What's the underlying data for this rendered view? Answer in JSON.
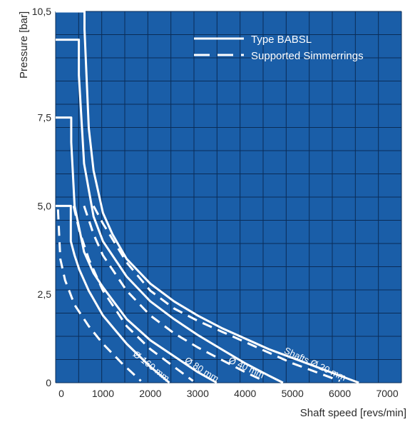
{
  "chart_data": {
    "type": "line",
    "xlabel": "Shaft speed [revs/min]",
    "ylabel": "Pressure [bar]",
    "xlim": [
      0,
      7300
    ],
    "ylim": [
      0,
      10.5
    ],
    "xticks": [
      0,
      1000,
      2000,
      3000,
      4000,
      5000,
      6000,
      7000
    ],
    "xtick_labels": [
      "0",
      "1000",
      "2000",
      "3000",
      "4000",
      "5000",
      "6000",
      "7000"
    ],
    "yticks": [
      0,
      2.5,
      5.0,
      7.5,
      10.5
    ],
    "ytick_labels": [
      "0",
      "2,5",
      "5,0",
      "7,5",
      "10,5"
    ],
    "grid": true,
    "background_color": "#1a5ea8",
    "line_color": "#ffffff",
    "legend_position": "top-right",
    "legend": [
      {
        "label": "Type BABSL",
        "style": "solid"
      },
      {
        "label": "Supported Simmerrings",
        "style": "dashed"
      }
    ],
    "series": [
      {
        "label": "Shafts Ø 20 mm",
        "style": "solid",
        "x": [
          0,
          610,
          610,
          700,
          800,
          1000,
          1200,
          1500,
          2000,
          2500,
          3000,
          3500,
          4000,
          4500,
          5000,
          5500,
          6000,
          6400
        ],
        "y": [
          10.5,
          10.5,
          10.0,
          7.2,
          6.0,
          4.8,
          4.2,
          3.5,
          2.8,
          2.3,
          1.9,
          1.55,
          1.25,
          0.95,
          0.7,
          0.45,
          0.2,
          0
        ]
      },
      {
        "label": "Ø 40 mm",
        "style": "solid",
        "x": [
          0,
          490,
          490,
          600,
          800,
          1000,
          1500,
          2000,
          2500,
          3000,
          3500,
          4000,
          4500,
          4800
        ],
        "y": [
          9.7,
          9.7,
          8.7,
          6.2,
          4.7,
          4.0,
          3.0,
          2.3,
          1.8,
          1.35,
          0.95,
          0.55,
          0.2,
          0
        ]
      },
      {
        "label": "Ø 80 mm",
        "style": "solid",
        "x": [
          0,
          330,
          330,
          400,
          600,
          800,
          1000,
          1500,
          2000,
          2500,
          3000,
          3400
        ],
        "y": [
          7.5,
          7.5,
          6.8,
          5.0,
          3.7,
          3.1,
          2.7,
          1.8,
          1.2,
          0.75,
          0.3,
          0
        ]
      },
      {
        "label": "Ø 160 mm",
        "style": "solid",
        "x": [
          0,
          320,
          320,
          400,
          500,
          700,
          1000,
          1500,
          2000,
          2400
        ],
        "y": [
          5.0,
          5.0,
          4.0,
          3.6,
          3.2,
          2.6,
          1.9,
          1.1,
          0.45,
          0
        ]
      },
      {
        "label": "Shafts Ø 20 mm",
        "style": "dashed",
        "x": [
          800,
          1000,
          1500,
          2000,
          2500,
          3000,
          3500,
          4000,
          4500,
          5000,
          5500,
          6000
        ],
        "y": [
          5.0,
          4.5,
          3.4,
          2.6,
          2.1,
          1.75,
          1.45,
          1.15,
          0.85,
          0.55,
          0.3,
          0.05
        ]
      },
      {
        "label": "Ø 40 mm",
        "style": "dashed",
        "x": [
          600,
          800,
          1000,
          1500,
          2000,
          2500,
          3000,
          3500,
          4000,
          4400
        ],
        "y": [
          5.0,
          4.2,
          3.6,
          2.6,
          1.9,
          1.4,
          1.0,
          0.65,
          0.3,
          0.05
        ]
      },
      {
        "label": "Ø 80 mm",
        "style": "dashed",
        "x": [
          380,
          500,
          700,
          1000,
          1500,
          2000,
          2500,
          2900
        ],
        "y": [
          5.0,
          4.3,
          3.5,
          2.6,
          1.6,
          0.95,
          0.45,
          0.05
        ]
      },
      {
        "label": "Ø 160 mm",
        "style": "dashed",
        "x": [
          50,
          100,
          200,
          400,
          700,
          1000,
          1400,
          1800
        ],
        "y": [
          4.9,
          3.5,
          2.9,
          2.2,
          1.6,
          1.1,
          0.55,
          0.05
        ]
      }
    ],
    "annotations": [
      {
        "text": "Shafts Ø 20 mm",
        "x": 5450,
        "y": 0.45,
        "rotate": 25
      },
      {
        "text": "Ø 40 mm",
        "x": 4000,
        "y": 0.35,
        "rotate": 25
      },
      {
        "text": "Ø 80 mm",
        "x": 3050,
        "y": 0.3,
        "rotate": 32
      },
      {
        "text": "Ø 160 mm",
        "x": 1980,
        "y": 0.4,
        "rotate": 38
      }
    ]
  }
}
